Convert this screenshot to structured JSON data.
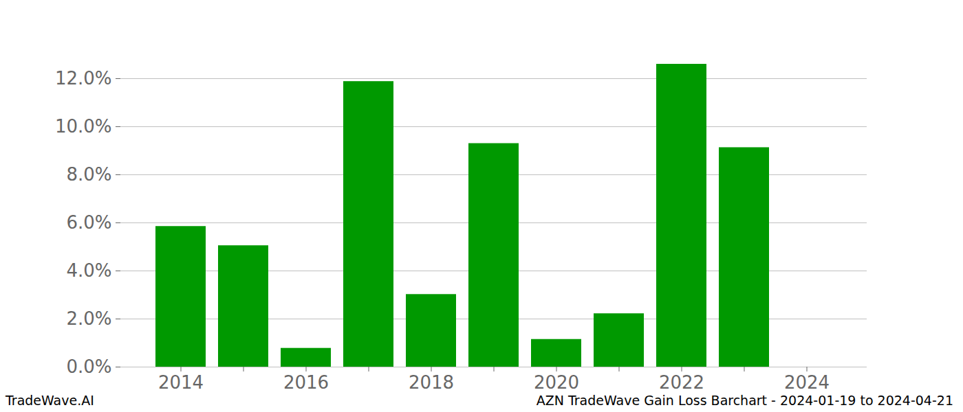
{
  "chart_data": {
    "type": "bar",
    "categories": [
      "2014",
      null,
      "2016",
      null,
      "2018",
      null,
      "2020",
      null,
      "2022",
      null,
      "2024"
    ],
    "values": [
      5.85,
      5.05,
      0.78,
      11.88,
      3.02,
      9.3,
      1.15,
      2.22,
      12.6,
      9.13,
      null
    ],
    "color": "#009900",
    "ylim": [
      0,
      13.2
    ],
    "yticks": [
      {
        "value": 0,
        "label": "0.0%"
      },
      {
        "value": 2,
        "label": "2.0%"
      },
      {
        "value": 4,
        "label": "4.0%"
      },
      {
        "value": 6,
        "label": "6.0%"
      },
      {
        "value": 8,
        "label": "8.0%"
      },
      {
        "value": 10,
        "label": "10.0%"
      },
      {
        "value": 12,
        "label": "12.0%"
      }
    ],
    "grid": true,
    "source": "TradeWave.AI",
    "caption": "AZN TradeWave Gain Loss Barchart - 2024-01-19 to 2024-04-21"
  }
}
